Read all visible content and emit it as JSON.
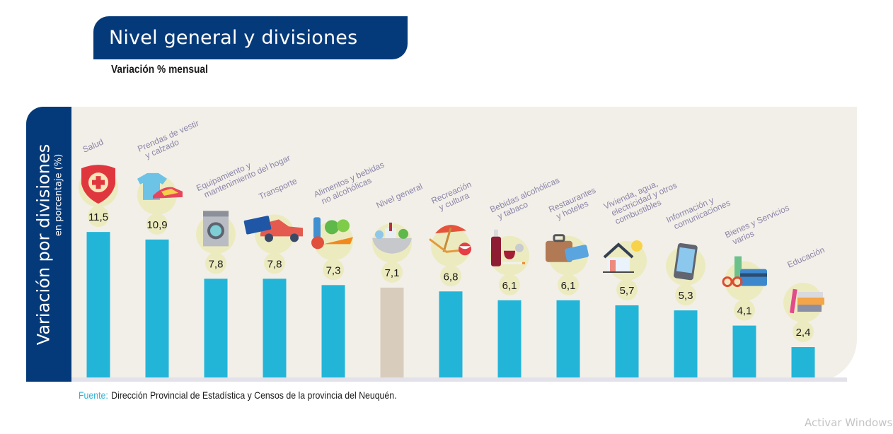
{
  "header": {
    "title": "Nivel general y divisiones",
    "subtitle": "Variación % mensual"
  },
  "side_label": {
    "main": "Variación por divisiones",
    "sub": "en porcentaje (%)"
  },
  "colors": {
    "navy": "#053a7a",
    "bar": "#22b5d8",
    "bar_highlight": "#d8cdbd",
    "bubble": "#ecebc0",
    "panel": "#f2efe9",
    "category_text": "#8b84a6"
  },
  "chart_data": {
    "type": "bar",
    "title": "Nivel general y divisiones",
    "subtitle": "Variación % mensual",
    "xlabel": "",
    "ylabel": "Variación por divisiones en porcentaje (%)",
    "ylim": [
      0,
      12
    ],
    "grid": false,
    "legend": "none",
    "categories": [
      "Salud",
      "Prendas de vestir y calzado",
      "Equipamiento y mantenimiento del hogar",
      "Transporte",
      "Alimentos y bebidas no alcohólicas",
      "Nivel general",
      "Recreación y cultura",
      "Bebidas alcohólicas y tabaco",
      "Restaurantes y hoteles",
      "Vivienda, agua, electricidad y otros combustibles",
      "Información y comunicaciones",
      "Bienes y Servicios varios",
      "Educación"
    ],
    "category_label_lines": [
      [
        "Salud"
      ],
      [
        "Prendas de vestir",
        "y calzado"
      ],
      [
        "Equipamiento y",
        "mantenimiento del hogar"
      ],
      [
        "Transporte"
      ],
      [
        "Alimentos y bebidas",
        "no alcohólicas"
      ],
      [
        "Nivel general"
      ],
      [
        "Recreación",
        "y cultura"
      ],
      [
        "Bebidas alcohólicas",
        "y tabaco"
      ],
      [
        "Restaurantes",
        "y hoteles"
      ],
      [
        "Vivienda, agua,",
        "electricidad y otros",
        "combustibles"
      ],
      [
        "Información y",
        "comunicaciones"
      ],
      [
        "Bienes y Servicios",
        "varios"
      ],
      [
        "Educación"
      ]
    ],
    "values": [
      11.5,
      10.9,
      7.8,
      7.8,
      7.3,
      7.1,
      6.8,
      6.1,
      6.1,
      5.7,
      5.3,
      4.1,
      2.4
    ],
    "value_labels": [
      "11,5",
      "10,9",
      "7,8",
      "7,8",
      "7,3",
      "7,1",
      "6,8",
      "6,1",
      "6,1",
      "5,7",
      "5,3",
      "4,1",
      "2,4"
    ],
    "highlight_category": "Nivel general",
    "icons": [
      "health-shield-icon",
      "clothing-shoe-icon",
      "washing-machine-icon",
      "car-sube-card-icon",
      "food-groceries-icon",
      "shopping-basket-icon",
      "beach-umbrella-icon",
      "wine-cigarette-icon",
      "suitcase-ticket-icon",
      "house-lightbulb-icon",
      "smartphone-icon",
      "scissors-comb-card-icon",
      "books-pencil-icon"
    ]
  },
  "footer": {
    "source_label": "Fuente:",
    "source_text": "Dirección Provincial de Estadística y Censos de la provincia del Neuquén."
  },
  "watermark": "Activar Windows"
}
